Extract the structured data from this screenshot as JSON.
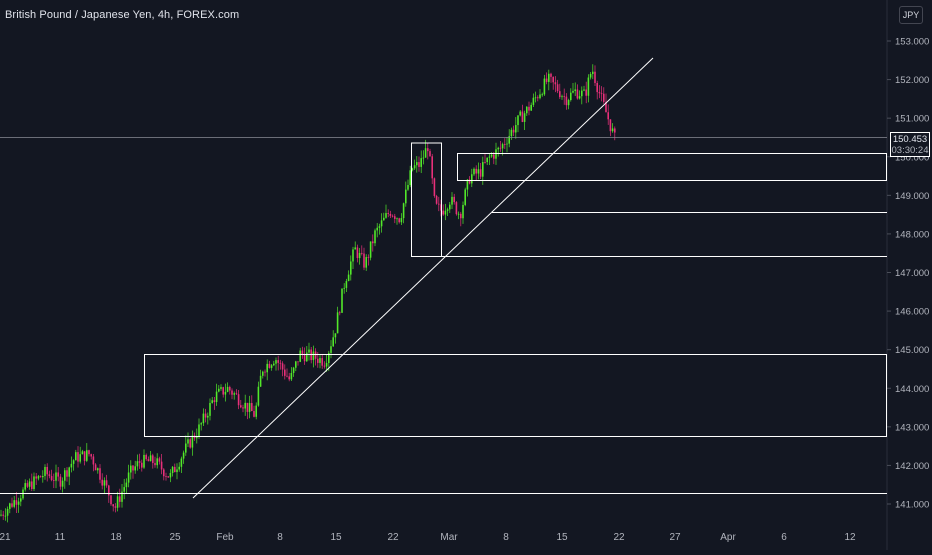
{
  "header": {
    "title": "British Pound / Japanese Yen, 4h, FOREX.com",
    "currency": "JPY"
  },
  "price_tag": {
    "price": "150.453",
    "countdown": "03:30:24"
  },
  "colors": {
    "background": "#131722",
    "up_candle": "#52e82a",
    "down_candle": "#e8307a",
    "drawing": "#ffffff",
    "axis_text": "#b2b5be"
  },
  "chart_data": {
    "type": "candlestick",
    "y_axis": {
      "ticks": [
        "153.000",
        "152.000",
        "151.000",
        "150.000",
        "149.000",
        "148.000",
        "147.000",
        "146.000",
        "145.000",
        "144.000",
        "143.000",
        "142.000",
        "141.000"
      ],
      "range": [
        140.7,
        153.5
      ]
    },
    "x_axis": {
      "ticks": [
        "21",
        "11",
        "18",
        "25",
        "Feb",
        "8",
        "15",
        "22",
        "Mar",
        "8",
        "15",
        "22",
        "27",
        "Apr",
        "6",
        "12"
      ]
    },
    "series": {
      "trend": [
        {
          "t": 0,
          "o": 141.0,
          "c": 141.0
        },
        {
          "t": 0.04,
          "o": 141.3,
          "c": 141.2
        },
        {
          "t": 0.07,
          "o": 141.6,
          "c": 141.8
        },
        {
          "t": 0.09,
          "o": 142.1,
          "c": 142.3
        },
        {
          "t": 0.12,
          "o": 141.7,
          "c": 141.1
        },
        {
          "t": 0.15,
          "o": 141.9,
          "c": 142.2
        },
        {
          "t": 0.19,
          "o": 142.0,
          "c": 141.5
        },
        {
          "t": 0.22,
          "o": 142.2,
          "c": 142.7
        },
        {
          "t": 0.24,
          "o": 143.0,
          "c": 143.6
        },
        {
          "t": 0.26,
          "o": 143.6,
          "c": 143.3
        },
        {
          "t": 0.29,
          "o": 143.3,
          "c": 144.3
        },
        {
          "t": 0.32,
          "o": 144.7,
          "c": 144.8
        },
        {
          "t": 0.35,
          "o": 144.9,
          "c": 144.6
        },
        {
          "t": 0.38,
          "o": 145.3,
          "c": 146.7
        },
        {
          "t": 0.41,
          "o": 147.1,
          "c": 147.3
        },
        {
          "t": 0.44,
          "o": 147.7,
          "c": 149.6
        },
        {
          "t": 0.47,
          "o": 150.0,
          "c": 148.4
        },
        {
          "t": 0.5,
          "o": 148.6,
          "c": 148.7
        },
        {
          "t": 0.53,
          "o": 149.0,
          "c": 149.6
        },
        {
          "t": 0.56,
          "o": 150.0,
          "c": 150.6
        },
        {
          "t": 0.6,
          "o": 151.0,
          "c": 151.5
        },
        {
          "t": 0.64,
          "o": 151.7,
          "c": 151.9
        },
        {
          "t": 0.67,
          "o": 152.0,
          "c": 151.5
        },
        {
          "t": 0.7,
          "o": 152.2,
          "c": 151.8
        },
        {
          "t": 0.73,
          "o": 151.3,
          "c": 150.45
        }
      ]
    },
    "levels": [
      141.3,
      148.5,
      149.3
    ],
    "zones": [
      {
        "from": 145.0,
        "to": 142.75
      },
      {
        "from": 149.9,
        "to": 149.3
      },
      {
        "from": 150.0,
        "to": 147.45
      }
    ],
    "current_price": 150.453
  }
}
